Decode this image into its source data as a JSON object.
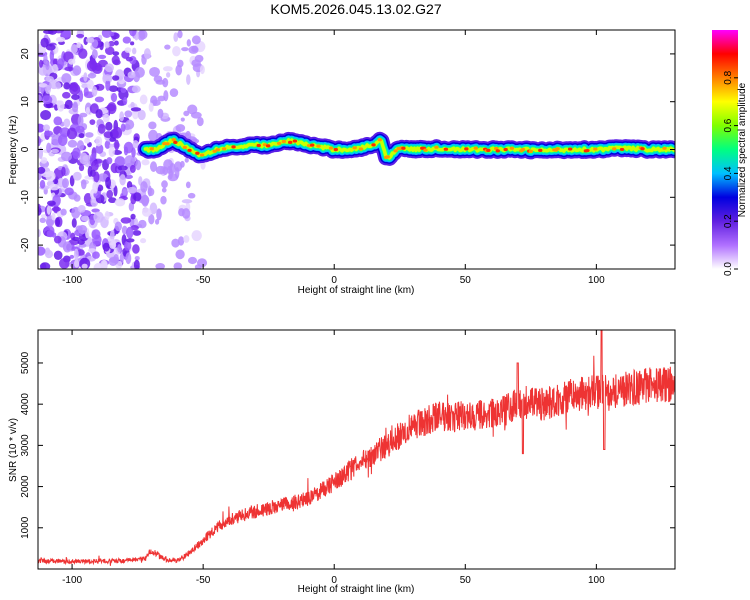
{
  "title": "KOM5.2026.045.13.02.G27",
  "chart_data": [
    {
      "type": "heatmap",
      "name": "spectrogram",
      "xlabel": "Height of straight line (km)",
      "ylabel": "Frequency (Hz)",
      "xlim": [
        -113,
        130
      ],
      "ylim": [
        -25,
        25
      ],
      "xticks": [
        -100,
        -50,
        0,
        50,
        100
      ],
      "yticks": [
        -20,
        -10,
        0,
        10,
        20
      ],
      "colorbar": {
        "label": "Normalized spectral amplitude",
        "range": [
          0,
          1
        ],
        "ticks": [
          0.0,
          0.2,
          0.4,
          0.6,
          0.8
        ],
        "tick_labels": [
          "0.0",
          "0.2",
          "0.4",
          "0.6",
          "0.8"
        ],
        "colors": [
          "#ffffff",
          "#b070ff",
          "#6020e0",
          "#0000e0",
          "#00c0ff",
          "#00ff80",
          "#80ff00",
          "#ffff00",
          "#ff8000",
          "#ff0000",
          "#ff00ff"
        ]
      },
      "noise_region_x": [
        -113,
        -50
      ],
      "signal_line": {
        "x": [
          -72,
          -68,
          -65,
          -62,
          -58,
          -55,
          -52,
          -50,
          -45,
          -40,
          -35,
          -30,
          -25,
          -20,
          -17,
          -15,
          -10,
          -5,
          0,
          5,
          10,
          15,
          18,
          20,
          25,
          30,
          40,
          50,
          60,
          70,
          80,
          90,
          100,
          110,
          120,
          130
        ],
        "freq_hz": [
          0,
          0,
          1,
          2,
          1,
          0,
          -1,
          -1,
          0,
          0.5,
          0.5,
          1,
          0.8,
          1.5,
          1.8,
          1.6,
          1,
          0.5,
          0,
          0,
          0.3,
          1,
          2,
          -2,
          0.5,
          0,
          0.2,
          0,
          0,
          0,
          -0.2,
          0,
          0,
          0.3,
          0,
          0
        ]
      }
    },
    {
      "type": "line",
      "name": "snr",
      "xlabel": "Height of straight line (km)",
      "ylabel": "SNR (10 * v/v)",
      "xlim": [
        -113,
        130
      ],
      "ylim": [
        0,
        5800
      ],
      "xticks": [
        -100,
        -50,
        0,
        50,
        100
      ],
      "yticks": [
        1000,
        2000,
        3000,
        4000,
        5000
      ],
      "color": "#ee3333",
      "trend": {
        "x": [
          -113,
          -100,
          -80,
          -72,
          -70,
          -65,
          -60,
          -55,
          -50,
          -45,
          -40,
          -30,
          -20,
          -10,
          0,
          10,
          20,
          30,
          40,
          50,
          60,
          65,
          70,
          80,
          90,
          100,
          110,
          120,
          130
        ],
        "y": [
          200,
          180,
          200,
          250,
          450,
          250,
          180,
          400,
          700,
          1000,
          1200,
          1400,
          1550,
          1700,
          2100,
          2600,
          3000,
          3500,
          3700,
          3700,
          3750,
          3850,
          4000,
          4000,
          4200,
          4300,
          4350,
          4450,
          4500
        ]
      },
      "spikes": [
        {
          "x": 70,
          "y": 5000
        },
        {
          "x": 72,
          "y": 2800
        },
        {
          "x": 102,
          "y": 5800
        },
        {
          "x": 103,
          "y": 2900
        }
      ]
    }
  ]
}
